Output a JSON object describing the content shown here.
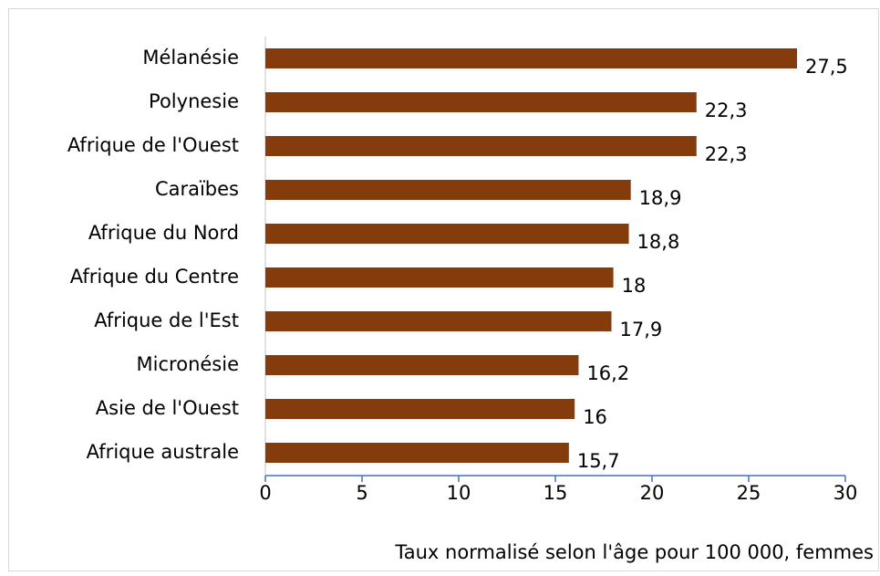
{
  "chart_data": {
    "type": "bar",
    "orientation": "horizontal",
    "x_label": "Taux normalisé selon l'âge pour 100 000, femmes",
    "categories": [
      "Mélanésie",
      "Polynesie",
      "Afrique de l'Ouest",
      "Caraïbes",
      "Afrique du Nord",
      "Afrique du Centre",
      "Afrique de l'Est",
      "Micronésie",
      "Asie de l'Ouest",
      "Afrique australe"
    ],
    "values": [
      27.5,
      22.3,
      22.3,
      18.9,
      18.8,
      18,
      17.9,
      16.2,
      16,
      15.7
    ],
    "value_labels": [
      "27,5",
      "22,3",
      "22,3",
      "18,9",
      "18,8",
      "18",
      "17,9",
      "16,2",
      "16",
      "15,7"
    ],
    "color": "#843c0c",
    "xlim": [
      0,
      30
    ],
    "xticks": [
      0,
      5,
      10,
      15,
      20,
      25,
      30
    ]
  }
}
